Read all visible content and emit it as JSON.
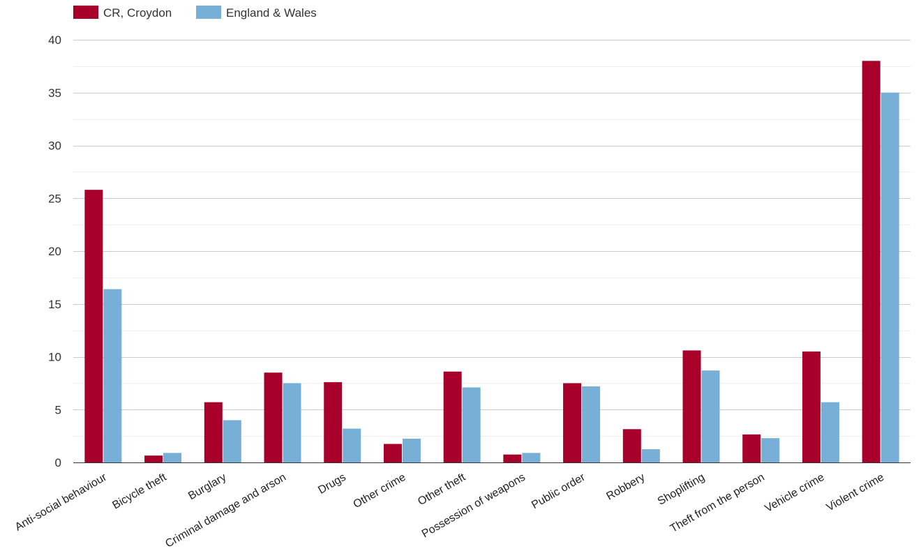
{
  "chart_data": {
    "type": "bar",
    "categories": [
      "Anti-social behaviour",
      "Bicycle theft",
      "Burglary",
      "Criminal damage and arson",
      "Drugs",
      "Other crime",
      "Other theft",
      "Possession of weapons",
      "Public order",
      "Robbery",
      "Shoplifting",
      "Theft from the person",
      "Vehicle crime",
      "Violent crime"
    ],
    "series": [
      {
        "name": "CR, Croydon",
        "color": "#a6002b",
        "values": [
          25.8,
          0.65,
          5.7,
          8.5,
          7.6,
          1.75,
          8.6,
          0.75,
          7.5,
          3.15,
          10.6,
          2.65,
          10.5,
          38.0
        ]
      },
      {
        "name": "England & Wales",
        "color": "#77afd6",
        "values": [
          16.4,
          0.9,
          4.0,
          7.5,
          3.2,
          2.25,
          7.1,
          0.9,
          7.2,
          1.25,
          8.7,
          2.3,
          5.7,
          35.0
        ]
      }
    ],
    "ylim": [
      0,
      40
    ],
    "yticks": [
      0,
      5,
      10,
      15,
      20,
      25,
      30,
      35,
      40
    ],
    "grid": true,
    "legend": "top-left"
  }
}
